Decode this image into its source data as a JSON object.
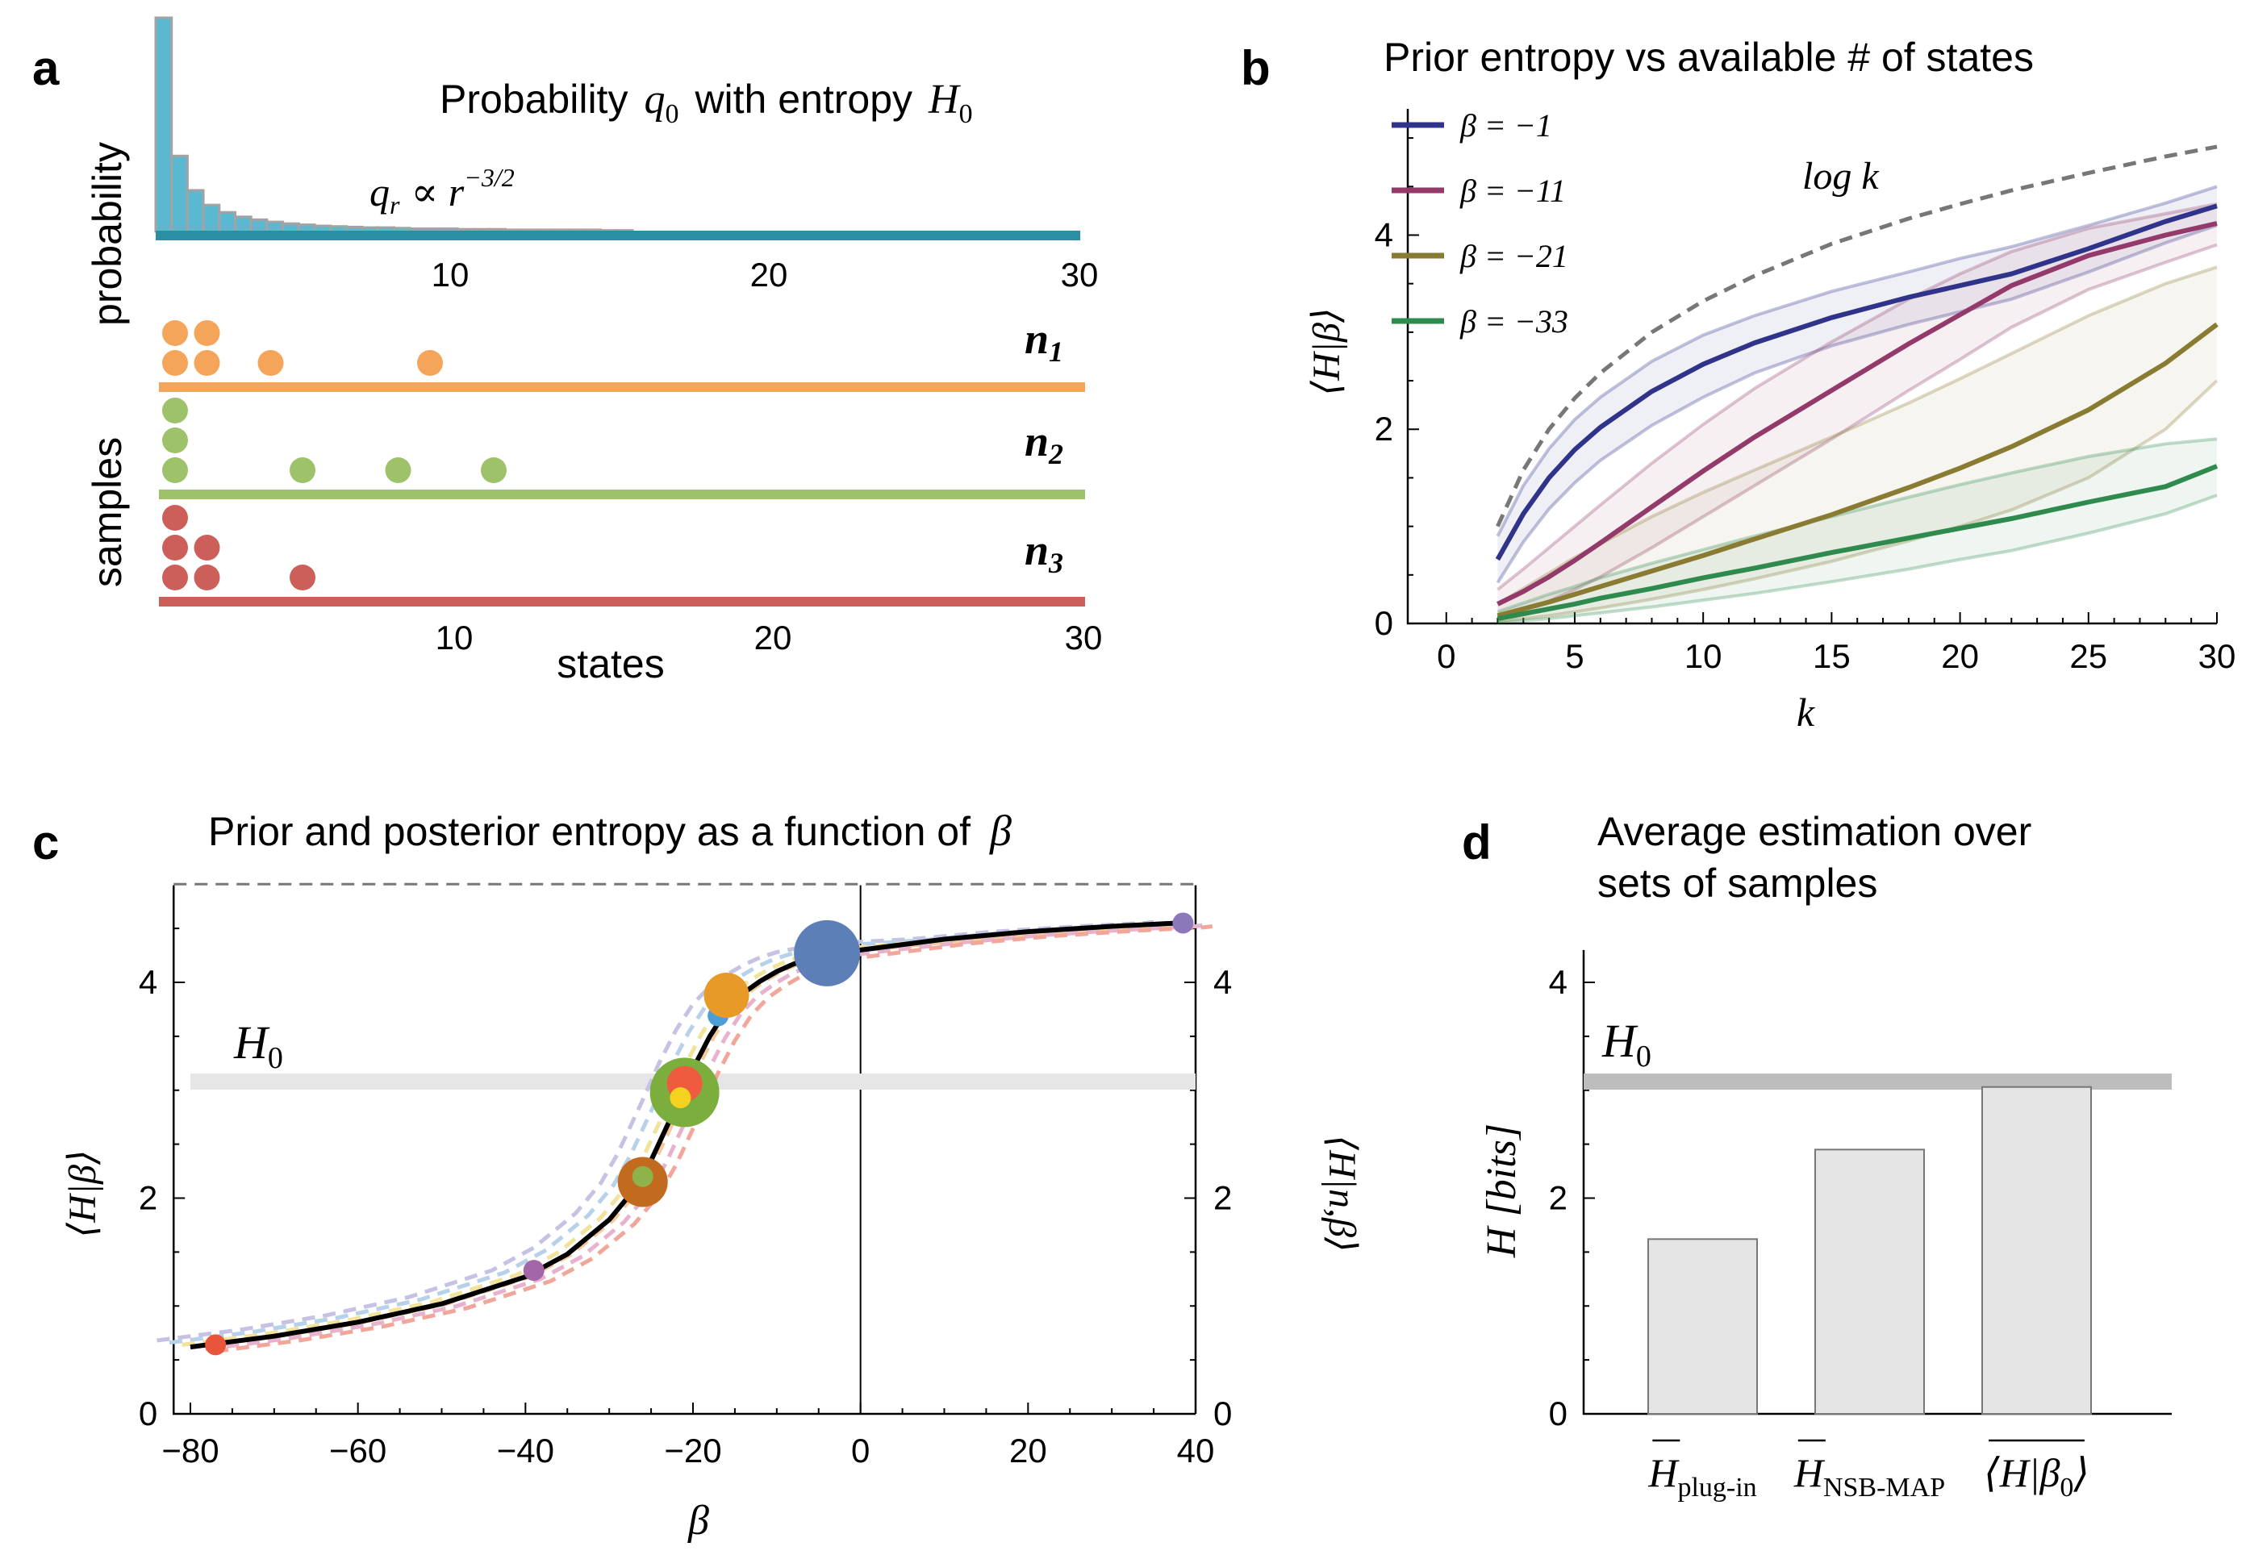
{
  "panels": {
    "a": {
      "label": "a",
      "title_prefix": "Probability",
      "title_q": "q",
      "title_q_sub": "0",
      "title_mid": "with entropy",
      "title_H": "H",
      "title_H_sub": "0",
      "ylabel_top": "probability",
      "ylabel_bottom": "samples",
      "xlabel": "states",
      "power_law_label": "q_r ∝ r^-3/2",
      "power_q": "q",
      "power_q_sub": "r",
      "power_prop": "∝ r",
      "power_exp": "−3/2",
      "ticks": [
        "10",
        "20",
        "30"
      ],
      "sample_labels": [
        {
          "n": "n",
          "sub": "1",
          "color": "#F4A55A"
        },
        {
          "n": "n",
          "sub": "2",
          "color": "#9DC26A"
        },
        {
          "n": "n",
          "sub": "3",
          "color": "#CC5F5A"
        }
      ]
    },
    "b": {
      "label": "b",
      "title": "Prior entropy vs available # of states",
      "ylabel": "⟨H|β⟩",
      "xlabel": "k",
      "logk_label": "log k",
      "legend": [
        {
          "label": "β = −1",
          "color": "#30338A"
        },
        {
          "label": "β = −11",
          "color": "#933A6A"
        },
        {
          "label": "β = −21",
          "color": "#8A7B33"
        },
        {
          "label": "β = −33",
          "color": "#2F8A4E"
        }
      ],
      "xticks": [
        "0",
        "5",
        "10",
        "15",
        "20",
        "25",
        "30"
      ],
      "yticks": [
        "0",
        "2",
        "4"
      ]
    },
    "c": {
      "label": "c",
      "title_text": "Prior and posterior entropy as a function of",
      "title_beta": "β",
      "ylabel_left": "⟨H|β⟩",
      "ylabel_right": "⟨H|n,β⟩",
      "xlabel": "β",
      "H0": "H",
      "H0_sub": "0",
      "xticks": [
        "−80",
        "−60",
        "−40",
        "−20",
        "0",
        "20",
        "40"
      ],
      "yticks": [
        "0",
        "2",
        "4"
      ]
    },
    "d": {
      "label": "d",
      "title_line1": "Average estimation over",
      "title_line2": "sets of samples",
      "ylabel": "H [bits]",
      "H0": "H",
      "H0_sub": "0",
      "yticks": [
        "0",
        "2",
        "4"
      ],
      "bars": [
        {
          "label": "H",
          "sub": "plug-in",
          "value": 1.62
        },
        {
          "label": "H",
          "sub": "NSB-MAP",
          "value": 2.45
        },
        {
          "label": "⟨H|β",
          "sub": "0",
          "tail": "⟩",
          "value": 3.03
        }
      ]
    }
  },
  "chart_data": [
    {
      "type": "bar",
      "panel": "a",
      "title": "Probability q0 with entropy H0",
      "annotation": "q_r ∝ r^-3/2",
      "xlabel": "states",
      "ylabel": "probability",
      "xlim": [
        0.5,
        30.5
      ],
      "categories": [
        1,
        2,
        3,
        4,
        5,
        6,
        7,
        8,
        9,
        10,
        11,
        12,
        13,
        14,
        15,
        16,
        17,
        18,
        19,
        20,
        21,
        22,
        23,
        24,
        25,
        26,
        27,
        28,
        29,
        30
      ],
      "values": [
        0.379,
        0.134,
        0.073,
        0.047,
        0.034,
        0.026,
        0.021,
        0.017,
        0.014,
        0.012,
        0.01,
        0.009,
        0.008,
        0.007,
        0.007,
        0.006,
        0.005,
        0.005,
        0.005,
        0.004,
        0.004,
        0.004,
        0.003,
        0.003,
        0.003,
        0.003,
        0.003,
        0.003,
        0.002,
        0.002
      ],
      "color": "#5AB8D0"
    },
    {
      "type": "scatter",
      "panel": "a",
      "xlabel": "states",
      "ylabel": "samples",
      "series": [
        {
          "name": "n1",
          "color": "#F4A55A",
          "counts": [
            [
              1,
              2
            ],
            [
              2,
              2
            ],
            [
              4,
              1
            ],
            [
              9,
              1
            ]
          ]
        },
        {
          "name": "n2",
          "color": "#9DC26A",
          "counts": [
            [
              1,
              3
            ],
            [
              5,
              1
            ],
            [
              8,
              1
            ],
            [
              11,
              1
            ]
          ]
        },
        {
          "name": "n3",
          "color": "#CC5F5A",
          "counts": [
            [
              1,
              3
            ],
            [
              2,
              2
            ],
            [
              5,
              1
            ]
          ]
        }
      ]
    },
    {
      "type": "line",
      "panel": "b",
      "title": "Prior entropy vs available # of states",
      "xlabel": "k",
      "ylabel": "⟨H|β⟩",
      "xlim": [
        -1.5,
        30
      ],
      "ylim": [
        0,
        5.3
      ],
      "x": [
        2,
        3,
        4,
        5,
        6,
        8,
        10,
        12,
        15,
        18,
        20,
        22,
        25,
        28,
        30
      ],
      "series": [
        {
          "name": "log k",
          "style": "dashed",
          "color": "#777777",
          "values": [
            1.0,
            1.58,
            2.0,
            2.32,
            2.58,
            3.0,
            3.32,
            3.58,
            3.91,
            4.17,
            4.32,
            4.46,
            4.64,
            4.81,
            4.91
          ]
        },
        {
          "name": "β = −1",
          "color": "#30338A",
          "values": [
            0.66,
            1.13,
            1.5,
            1.79,
            2.02,
            2.39,
            2.67,
            2.89,
            3.15,
            3.36,
            3.48,
            3.6,
            3.86,
            4.14,
            4.3
          ],
          "upper": [
            0.9,
            1.42,
            1.8,
            2.1,
            2.33,
            2.7,
            2.97,
            3.17,
            3.42,
            3.62,
            3.76,
            3.88,
            4.1,
            4.33,
            4.5
          ],
          "lower": [
            0.42,
            0.84,
            1.18,
            1.45,
            1.68,
            2.04,
            2.33,
            2.58,
            2.86,
            3.08,
            3.21,
            3.34,
            3.62,
            3.92,
            4.1
          ]
        },
        {
          "name": "β = −11",
          "color": "#933A6A",
          "values": [
            0.2,
            0.33,
            0.48,
            0.65,
            0.83,
            1.2,
            1.57,
            1.92,
            2.4,
            2.88,
            3.18,
            3.48,
            3.79,
            4.0,
            4.12
          ],
          "upper": [
            0.35,
            0.56,
            0.78,
            1.0,
            1.22,
            1.65,
            2.05,
            2.42,
            2.9,
            3.34,
            3.6,
            3.83,
            4.07,
            4.22,
            4.32
          ],
          "lower": [
            0.07,
            0.14,
            0.23,
            0.35,
            0.48,
            0.78,
            1.1,
            1.42,
            1.9,
            2.4,
            2.72,
            3.05,
            3.44,
            3.72,
            3.9
          ]
        },
        {
          "name": "β = −21",
          "color": "#8A7B33",
          "values": [
            0.08,
            0.15,
            0.22,
            0.3,
            0.38,
            0.54,
            0.7,
            0.87,
            1.12,
            1.4,
            1.6,
            1.82,
            2.2,
            2.68,
            3.08
          ],
          "upper": [
            0.2,
            0.36,
            0.52,
            0.68,
            0.82,
            1.1,
            1.35,
            1.58,
            1.92,
            2.27,
            2.52,
            2.78,
            3.17,
            3.5,
            3.67
          ],
          "lower": [
            0.02,
            0.05,
            0.08,
            0.12,
            0.16,
            0.25,
            0.35,
            0.46,
            0.64,
            0.85,
            1.0,
            1.17,
            1.5,
            2.0,
            2.5
          ]
        },
        {
          "name": "β = −33",
          "color": "#2F8A4E",
          "values": [
            0.05,
            0.1,
            0.15,
            0.2,
            0.26,
            0.36,
            0.47,
            0.57,
            0.73,
            0.88,
            0.98,
            1.08,
            1.25,
            1.41,
            1.62
          ],
          "upper": [
            0.12,
            0.21,
            0.3,
            0.38,
            0.47,
            0.62,
            0.76,
            0.9,
            1.1,
            1.3,
            1.43,
            1.55,
            1.72,
            1.85,
            1.9
          ],
          "lower": [
            0.01,
            0.03,
            0.05,
            0.08,
            0.11,
            0.17,
            0.24,
            0.31,
            0.43,
            0.56,
            0.66,
            0.75,
            0.93,
            1.13,
            1.32
          ]
        }
      ]
    },
    {
      "type": "line",
      "panel": "c",
      "title": "Prior and posterior entropy as a function of β",
      "xlabel": "β",
      "ylabel": "⟨H|β⟩",
      "ylabel_right": "⟨H|n,β⟩",
      "xlim": [
        -80,
        40
      ],
      "ylim": [
        0,
        4.9
      ],
      "H0": 3.08,
      "max_entropy": 4.91,
      "x": [
        -80,
        -70,
        -60,
        -50,
        -40,
        -35,
        -30,
        -27,
        -25,
        -22,
        -20,
        -18,
        -16,
        -14,
        -12,
        -10,
        -8,
        -6,
        -4,
        -2,
        0,
        10,
        20,
        30,
        38,
        39
      ],
      "series": [
        {
          "name": "prior",
          "color": "#000000",
          "values": [
            0.62,
            0.72,
            0.85,
            1.02,
            1.27,
            1.48,
            1.8,
            2.08,
            2.35,
            2.85,
            3.2,
            3.5,
            3.74,
            3.9,
            4.01,
            4.1,
            4.17,
            4.22,
            4.25,
            4.28,
            4.3,
            4.4,
            4.47,
            4.52,
            4.55,
            4.56
          ]
        },
        {
          "name": "posterior (dashed ensemble)",
          "style": "dashed",
          "colors": [
            "#C6C2E4",
            "#B7D1EA",
            "#F1E39A",
            "#F4C99C",
            "#E7B2CC",
            "#F2A69A"
          ],
          "offsets": [
            -4,
            -2.5,
            -1,
            0.5,
            1.8,
            3
          ]
        }
      ],
      "markers": [
        {
          "beta": -77,
          "H": 0.64,
          "size": 13,
          "color": "#E8553A"
        },
        {
          "beta": -39,
          "H": 1.33,
          "size": 13,
          "color": "#A266A9"
        },
        {
          "beta": -26,
          "H": 2.15,
          "size": 31,
          "color": "#C26B1E"
        },
        {
          "beta": -26,
          "H": 2.2,
          "size": 13,
          "color": "#8DB34A"
        },
        {
          "beta": -21,
          "H": 2.98,
          "size": 43,
          "color": "#7CAE3E"
        },
        {
          "beta": -21,
          "H": 3.06,
          "size": 22,
          "color": "#EF5B3F"
        },
        {
          "beta": -21.5,
          "H": 2.93,
          "size": 13,
          "color": "#F4D21F"
        },
        {
          "beta": -17,
          "H": 3.69,
          "size": 13,
          "color": "#4B9FD6"
        },
        {
          "beta": -16,
          "H": 3.88,
          "size": 28,
          "color": "#E89A28"
        },
        {
          "beta": -4,
          "H": 4.27,
          "size": 41,
          "color": "#5D7FB8"
        },
        {
          "beta": 38.5,
          "H": 4.55,
          "size": 13,
          "color": "#8B78BA"
        }
      ]
    },
    {
      "type": "bar",
      "panel": "d",
      "title": "Average estimation over sets of samples",
      "ylabel": "H [bits]",
      "ylim": [
        0,
        4.3
      ],
      "H0": 3.08,
      "categories": [
        "H plug-in",
        "H NSB-MAP",
        "⟨H|β0⟩"
      ],
      "values": [
        1.62,
        2.45,
        3.03
      ],
      "color": "#E5E5E5"
    }
  ]
}
